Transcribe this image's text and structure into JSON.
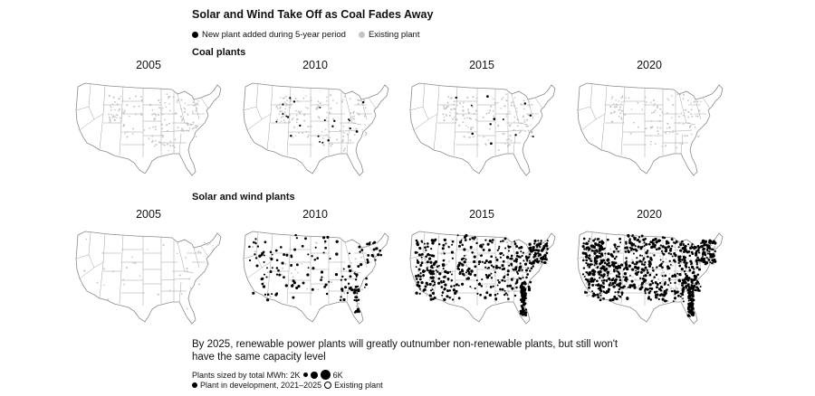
{
  "title": "Solar and Wind Take Off as Coal Fades Away",
  "legend": {
    "new_label": "New plant added during 5-year period",
    "existing_label": "Existing plant"
  },
  "sections": [
    {
      "label": "Coal plants",
      "years": [
        "2005",
        "2010",
        "2015",
        "2020"
      ],
      "new_dot_counts": [
        0,
        22,
        12,
        0
      ],
      "existing_dot_counts": [
        160,
        150,
        145,
        125
      ]
    },
    {
      "label": "Solar and wind plants",
      "years": [
        "2005",
        "2010",
        "2015",
        "2020"
      ],
      "new_dot_counts": [
        0,
        160,
        520,
        900
      ],
      "existing_dot_counts": [
        35,
        40,
        150,
        300
      ]
    }
  ],
  "note": "By 2025, renewable power plants will greatly outnumber non-renewable plants, but still won't have the same capacity level",
  "size_legend": {
    "prefix": "Plants sized by total MWh: 2K",
    "max_label": "6K"
  },
  "dev_legend": {
    "development_label": "Plant in development, 2021–2025",
    "existing_label": "Existing plant"
  },
  "colors": {
    "new_plant": "#000000",
    "existing_plant": "#c4c4c4",
    "state_borders": "#9a9a9a",
    "land": "#ffffff"
  }
}
